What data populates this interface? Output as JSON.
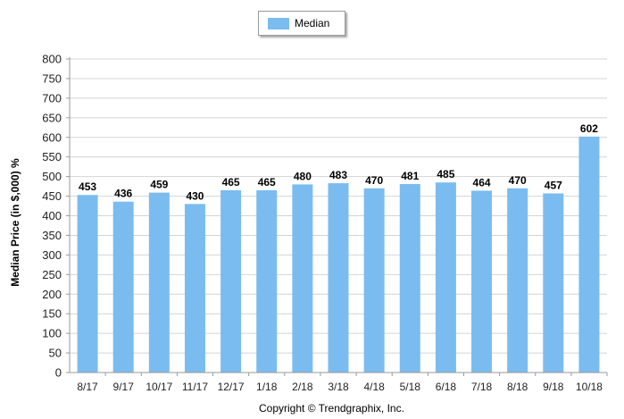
{
  "chart_data": {
    "type": "bar",
    "categories": [
      "8/17",
      "9/17",
      "10/17",
      "11/17",
      "12/17",
      "1/18",
      "2/18",
      "3/18",
      "4/18",
      "5/18",
      "6/18",
      "7/18",
      "8/18",
      "9/18",
      "10/18"
    ],
    "series": [
      {
        "name": "Median",
        "values": [
          453,
          436,
          459,
          430,
          465,
          465,
          480,
          483,
          470,
          481,
          485,
          464,
          470,
          457,
          602
        ],
        "color": "#7abcf0"
      }
    ],
    "ylabel": "Median Price (in $,000) %",
    "xlabel": "",
    "ylim": [
      0,
      800
    ],
    "y_ticks": [
      0,
      50,
      100,
      150,
      200,
      250,
      300,
      350,
      400,
      450,
      500,
      550,
      600,
      650,
      700,
      750,
      800
    ],
    "grid": true,
    "legend_position": "top-center",
    "gridline_color": "#d4d4d4",
    "axis_color": "#9a9a9a"
  },
  "legend": {
    "label": "Median"
  },
  "footer": {
    "copyright": "Copyright © Trendgraphix, Inc."
  }
}
